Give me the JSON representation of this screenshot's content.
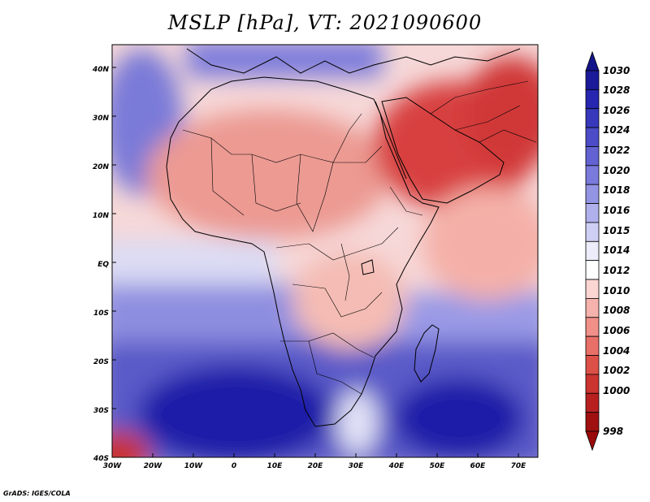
{
  "title": "MSLP [hPa], VT: 2021090600",
  "footer": "GrADS: IGES/COLA",
  "axes": {
    "lat_labels": [
      "40N",
      "30N",
      "20N",
      "10N",
      "EQ",
      "10S",
      "20S",
      "30S",
      "40S"
    ],
    "lon_labels": [
      "30W",
      "20W",
      "10W",
      "0",
      "10E",
      "20E",
      "30E",
      "40E",
      "50E",
      "60E",
      "70E"
    ]
  },
  "colorbar": {
    "levels": [
      "1030",
      "1028",
      "1026",
      "1024",
      "1022",
      "1020",
      "1018",
      "1016",
      "1015",
      "1014",
      "1012",
      "1010",
      "1008",
      "1006",
      "1004",
      "1002",
      "1000",
      "998"
    ],
    "colors": [
      "#1a1a9a",
      "#2626b0",
      "#3838bc",
      "#4c4cc8",
      "#6262d2",
      "#7a7adc",
      "#9494e4",
      "#b0b0ec",
      "#cfcff4",
      "#ececfa",
      "#ffffff",
      "#fbd6d2",
      "#f6b2ac",
      "#f09088",
      "#e87068",
      "#dd5048",
      "#cc3430",
      "#b82020",
      "#a01010"
    ],
    "top_arrow_color": "#14148a",
    "bottom_arrow_color": "#9a0a0a"
  },
  "colors": {
    "high": "#2424b0",
    "low": "#c02424",
    "neutral": "#ffffff",
    "border": "#000000"
  }
}
